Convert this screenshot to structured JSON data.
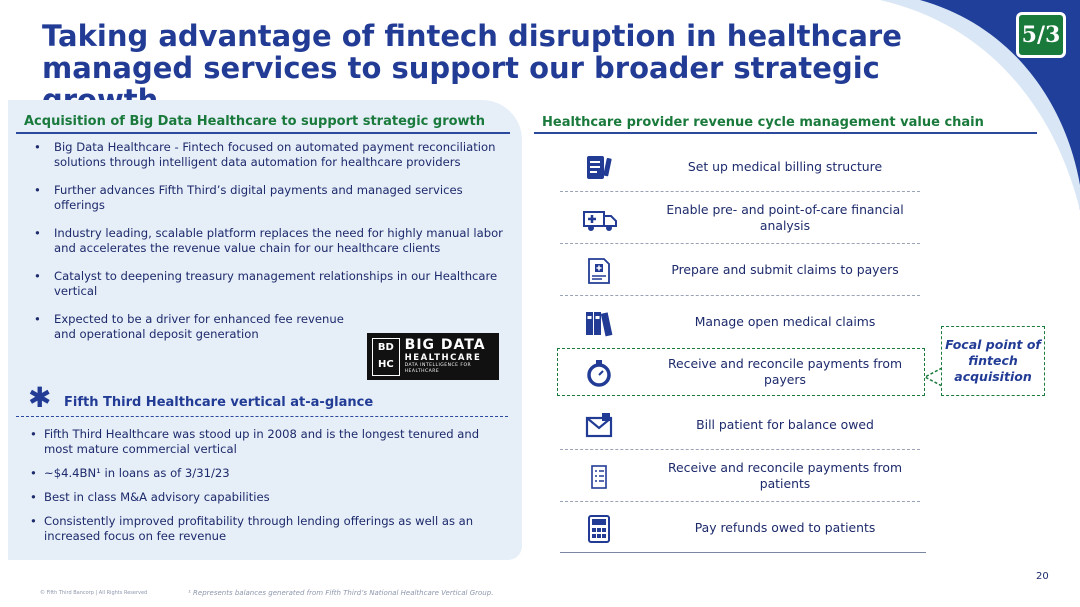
{
  "title": "Taking advantage of fintech disruption in healthcare managed services to support our broader strategic growth",
  "logo_text": "5/3",
  "left": {
    "heading": "Acquisition of Big Data Healthcare to support strategic growth",
    "bullets": [
      "Big Data Healthcare - Fintech focused on automated payment reconciliation solutions through intelligent data automation for healthcare providers",
      "Further advances Fifth Third’s digital payments and managed services offerings",
      "Industry leading, scalable platform replaces the need for highly manual labor and accelerates the revenue value chain for our healthcare clients",
      "Catalyst to deepening treasury management relationships in our Healthcare vertical",
      "Expected to be a driver for enhanced fee revenue and operational deposit generation"
    ],
    "bdh_logo": {
      "mark_top": "BD",
      "mark_bottom": "HC",
      "big": "BIG DATA",
      "hc": "HEALTHCARE",
      "tag": "DATA INTELLIGENCE FOR HEALTHCARE"
    },
    "vertical_heading": "Fifth Third Healthcare vertical at-a-glance",
    "vertical_bullets": [
      "Fifth Third Healthcare was stood up in 2008 and is the longest tenured and most mature commercial vertical",
      "~$4.4BN¹ in loans as of 3/31/23",
      "Best in class M&A advisory capabilities",
      "Consistently improved profitability through lending offerings as well as an increased focus on fee revenue"
    ]
  },
  "right": {
    "heading": "Healthcare provider revenue cycle management value chain",
    "steps": [
      {
        "label": "Set up medical billing structure",
        "icon": "billing-document-icon"
      },
      {
        "label": "Enable pre- and point-of-care financial analysis",
        "icon": "ambulance-icon"
      },
      {
        "label": "Prepare and submit claims to payers",
        "icon": "medical-claim-icon"
      },
      {
        "label": "Manage open medical claims",
        "icon": "binders-icon"
      },
      {
        "label": "Receive and reconcile payments from payers",
        "icon": "stopwatch-icon"
      },
      {
        "label": "Bill patient for balance owed",
        "icon": "envelope-icon"
      },
      {
        "label": "Receive and reconcile payments from patients",
        "icon": "checklist-icon"
      },
      {
        "label": "Pay refunds owed to patients",
        "icon": "calculator-icon"
      }
    ],
    "callout": "Focal point of fintech acquisition"
  },
  "page_number": "20",
  "copyright": "© Fifth Third Bancorp | All Rights Reserved",
  "footnote": "¹ Represents balances generated from Fifth Third’s National Healthcare Vertical Group.",
  "colors": {
    "title_blue": "#223c96",
    "green": "#1a7a3c",
    "panel": "#e6eef8",
    "corner_blue": "#1f3f9a"
  }
}
